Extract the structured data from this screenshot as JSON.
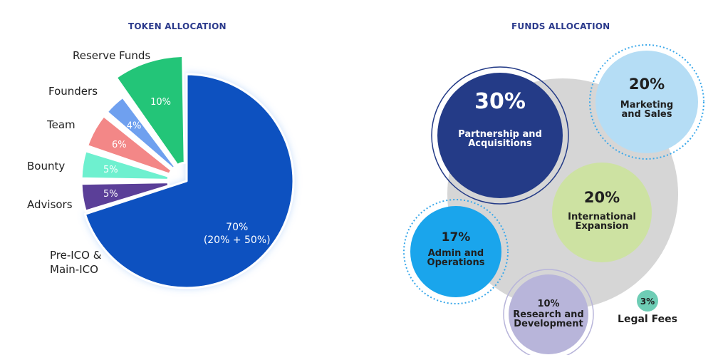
{
  "token_panel": {
    "title": "TOKEN ALLOCATION"
  },
  "funds_panel": {
    "title": "FUNDS ALLOCATION"
  },
  "chart_data": [
    {
      "type": "pie",
      "title": "TOKEN ALLOCATION",
      "slices": [
        {
          "label": "Pre-ICO &\nMain-ICO",
          "value": 70,
          "display": "70%",
          "display2": "(20% + 50%)",
          "color": "#0a51c0"
        },
        {
          "label": "Advisors",
          "value": 5,
          "display": "5%",
          "color": "#5b3f98"
        },
        {
          "label": "Bounty",
          "value": 5,
          "display": "5%",
          "color": "#6ef0cf"
        },
        {
          "label": "Team",
          "value": 6,
          "display": "6%",
          "color": "#f38787"
        },
        {
          "label": "Founders",
          "value": 4,
          "display": "4%",
          "color": "#6fa0ef"
        },
        {
          "label": "Reserve Funds",
          "value": 10,
          "display": "10%",
          "color": "#23c578"
        }
      ]
    },
    {
      "type": "bubble",
      "title": "FUNDS ALLOCATION",
      "bubbles": [
        {
          "value": "30%",
          "label": "Partnership and\nAcquisitions",
          "color": "#243b87"
        },
        {
          "value": "20%",
          "label": "Marketing\nand Sales",
          "color": "#b5ddf5"
        },
        {
          "value": "20%",
          "label": "International\nExpansion",
          "color": "#cde2a2"
        },
        {
          "value": "17%",
          "label": "Admin and\nOperations",
          "color": "#1aa5ec"
        },
        {
          "value": "10%",
          "label": "Research and\nDevelopment",
          "color": "#b8b5da"
        },
        {
          "value": "3%",
          "label": "Legal Fees",
          "color": "#6ecdb5"
        }
      ]
    }
  ]
}
